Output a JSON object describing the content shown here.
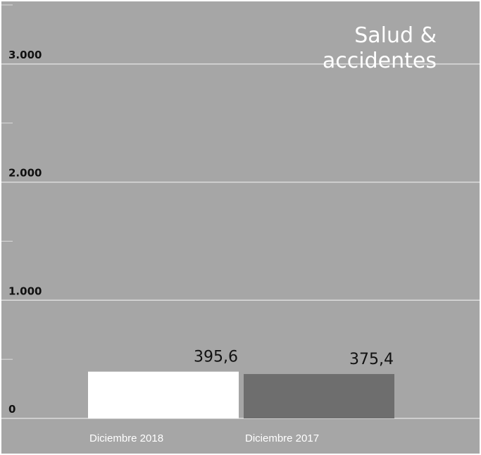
{
  "chart_data": {
    "type": "bar",
    "title_lines": [
      "Salud &",
      "accidentes"
    ],
    "categories": [
      "Diciembre 2018",
      "Diciembre 2017"
    ],
    "values": [
      395.6,
      375.4
    ],
    "value_labels": [
      "395,6",
      "375,4"
    ],
    "bar_colors": [
      "#ffffff",
      "#6e6e6e"
    ],
    "ylim": [
      0,
      3500
    ],
    "yticks": [
      0,
      1000,
      2000,
      3000
    ],
    "ytick_labels": [
      "0",
      "1.000",
      "2.000",
      "3.000"
    ],
    "minor_ticks": [
      500,
      1500,
      2500,
      3500
    ],
    "grid": true,
    "background": "#a6a6a6",
    "gridline_color": "#dcdcdc"
  }
}
